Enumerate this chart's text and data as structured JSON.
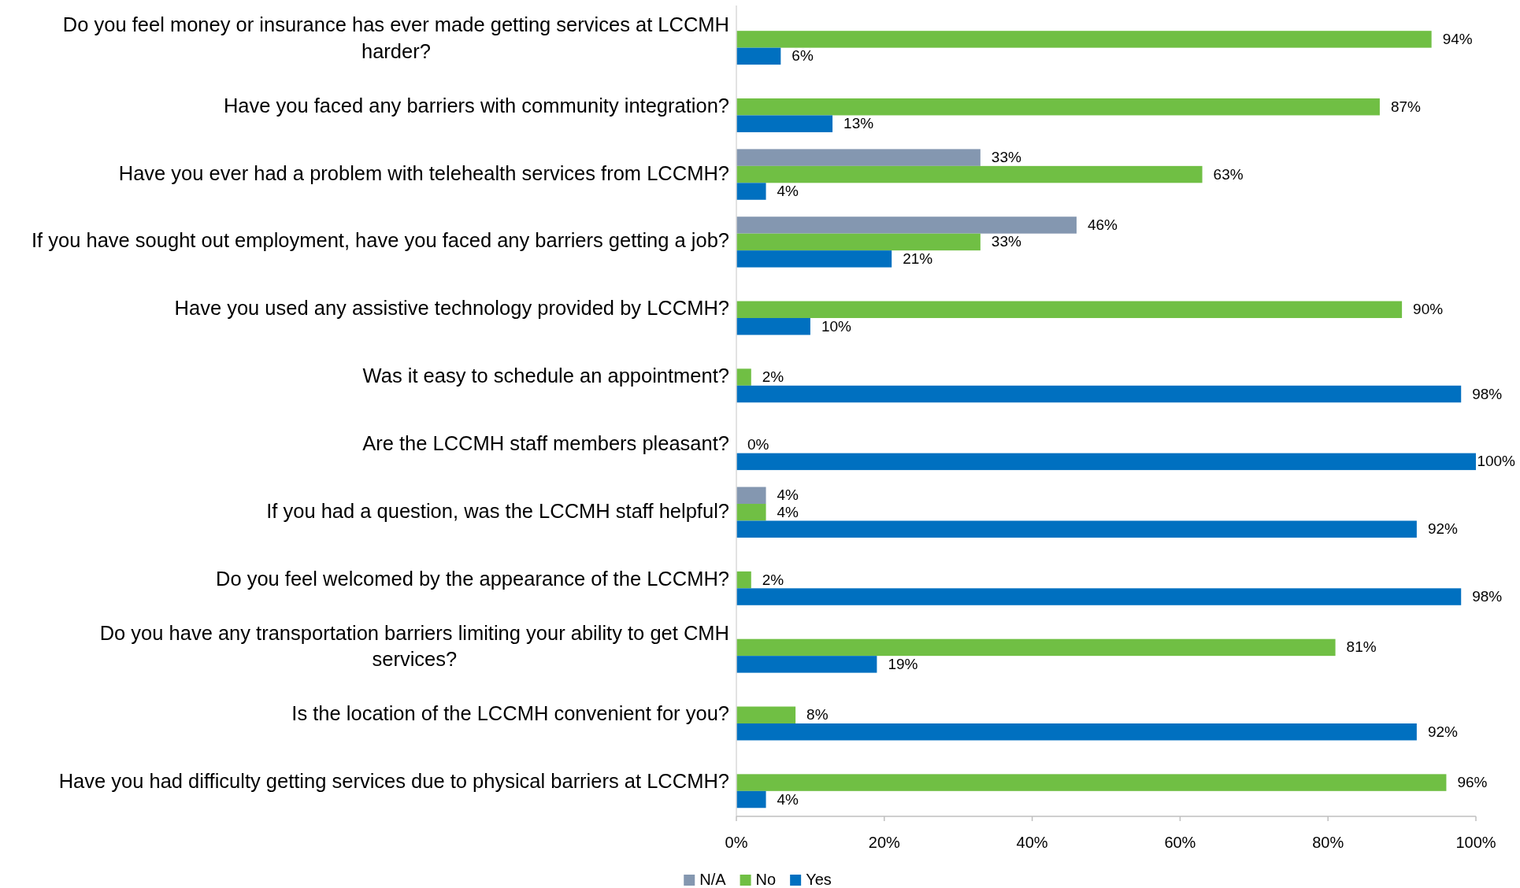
{
  "chart_data": {
    "type": "bar",
    "orientation": "horizontal",
    "legend": "bottom",
    "categories": [
      "Do you feel money or insurance has ever made getting services at LCCMH harder?",
      "Have you faced any barriers with community integration?",
      "Have you ever had a problem with telehealth services from LCCMH?",
      "If you have sought out employment, have you faced any barriers getting a job?",
      "Have you used any assistive technology provided by LCCMH?",
      "Was it easy to schedule an appointment?",
      "Are the LCCMH staff members pleasant?",
      "If you had a question, was the LCCMH staff helpful?",
      "Do you feel welcomed by the appearance of the LCCMH?",
      "Do you have any transportation barriers limiting your ability to get CMH services?",
      "Is the location of the LCCMH convenient for you?",
      "Have you had difficulty getting services due to physical barriers at LCCMH?"
    ],
    "series": [
      {
        "name": "N/A",
        "color": "#8497b0",
        "values": [
          null,
          null,
          33,
          46,
          null,
          null,
          null,
          4,
          null,
          null,
          null,
          null
        ],
        "value_labels": [
          null,
          null,
          "33%",
          "46%",
          null,
          null,
          null,
          "4%",
          null,
          null,
          null,
          null
        ]
      },
      {
        "name": "No",
        "color": "#70bf44",
        "values": [
          94,
          87,
          63,
          33,
          90,
          2,
          0,
          4,
          2,
          81,
          8,
          96
        ],
        "value_labels": [
          "94%",
          "87%",
          "63%",
          "33%",
          "90%",
          "2%",
          "0%",
          "4%",
          "2%",
          "81%",
          "8%",
          "96%"
        ]
      },
      {
        "name": "Yes",
        "color": "#0070c0",
        "values": [
          6,
          13,
          4,
          21,
          10,
          98,
          100,
          92,
          98,
          19,
          92,
          4
        ],
        "value_labels": [
          "6%",
          "13%",
          "4%",
          "21%",
          "10%",
          "98%",
          "100%",
          "92%",
          "98%",
          "19%",
          "92%",
          "4%"
        ]
      }
    ],
    "xlim": [
      0,
      100
    ],
    "xticks": [
      {
        "value": 0,
        "label": "0%"
      },
      {
        "value": 20,
        "label": "20%"
      },
      {
        "value": 40,
        "label": "40%"
      },
      {
        "value": 60,
        "label": "60%"
      },
      {
        "value": 80,
        "label": "80%"
      },
      {
        "value": 100,
        "label": "100%"
      }
    ]
  }
}
